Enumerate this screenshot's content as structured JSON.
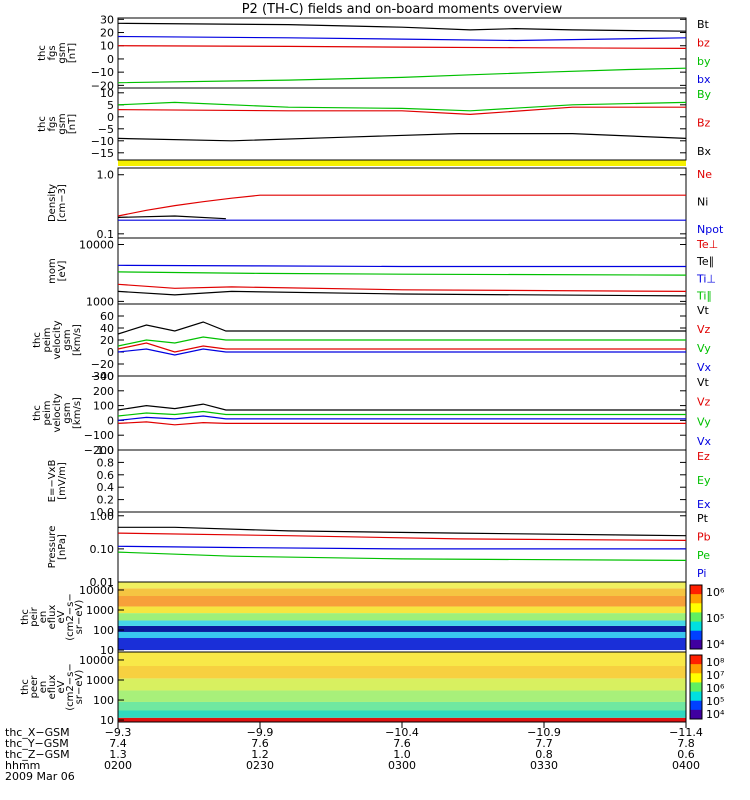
{
  "title": "P2 (TH-C) fields and on-board moments overview",
  "chart_data": {
    "type": "line",
    "panels": [
      {
        "ylabel": [
          "thc",
          "fgs",
          "gsm",
          "[nT]"
        ],
        "yticks": [
          "30",
          "20",
          "10",
          "0",
          "−10",
          "−20"
        ],
        "ylim": [
          -22,
          31
        ],
        "log": false,
        "legend": [
          {
            "name": "Bt",
            "color": "#000000"
          },
          {
            "name": "bz",
            "color": "#e00000"
          },
          {
            "name": "by",
            "color": "#00c000"
          },
          {
            "name": "bx",
            "color": "#0000e0"
          }
        ],
        "series": [
          {
            "name": "Bt",
            "color": "#000000",
            "x": [
              0,
              0.3,
              0.5,
              0.62,
              0.7,
              0.8,
              1.0
            ],
            "y": [
              27,
              26,
              24,
              22,
              23,
              22,
              21
            ]
          },
          {
            "name": "bz",
            "color": "#e00000",
            "x": [
              0,
              0.3,
              0.5,
              0.7,
              1.0
            ],
            "y": [
              10,
              9.5,
              9,
              8.5,
              8
            ]
          },
          {
            "name": "by",
            "color": "#00c000",
            "x": [
              0,
              0.3,
              0.5,
              0.62,
              0.75,
              0.9,
              1.0
            ],
            "y": [
              -18,
              -16,
              -14,
              -12,
              -10,
              -8,
              -7
            ]
          },
          {
            "name": "bx",
            "color": "#0000e0",
            "x": [
              0,
              0.3,
              0.5,
              0.7,
              1.0
            ],
            "y": [
              17,
              16,
              15,
              14,
              16
            ]
          }
        ]
      },
      {
        "ylabel": [
          "thc",
          "fgs",
          "gsm",
          "[nT]"
        ],
        "yticks": [
          "10",
          "5",
          "0",
          "−5",
          "−10",
          "−15"
        ],
        "ylim": [
          -18,
          12
        ],
        "log": false,
        "legend": [
          {
            "name": "By",
            "color": "#00c000"
          },
          {
            "name": "Bz",
            "color": "#e00000"
          },
          {
            "name": "Bx",
            "color": "#000000"
          }
        ],
        "series": [
          {
            "name": "By",
            "color": "#00c000",
            "x": [
              0,
              0.1,
              0.3,
              0.5,
              0.62,
              0.8,
              1.0
            ],
            "y": [
              5,
              6,
              4,
              3.5,
              2.5,
              5,
              6
            ]
          },
          {
            "name": "Bz",
            "color": "#e00000",
            "x": [
              0,
              0.3,
              0.5,
              0.62,
              0.8,
              1.0
            ],
            "y": [
              3,
              2.5,
              2.5,
              1,
              4,
              4
            ]
          },
          {
            "name": "Bx",
            "color": "#000000",
            "x": [
              0,
              0.2,
              0.4,
              0.6,
              0.8,
              1.0
            ],
            "y": [
              -9,
              -10,
              -8.5,
              -7,
              -7,
              -9
            ]
          }
        ]
      },
      {
        "ylabel": [
          "Density",
          "[cm−3]"
        ],
        "yticks": [
          "1.0",
          "0.1"
        ],
        "ylim": [
          0.085,
          1.3
        ],
        "log": true,
        "legend": [
          {
            "name": "Ne",
            "color": "#e00000"
          },
          {
            "name": "Ni",
            "color": "#000000"
          },
          {
            "name": "Npot",
            "color": "#0000e0"
          }
        ],
        "series": [
          {
            "name": "Ne",
            "color": "#e00000",
            "x": [
              0,
              0.05,
              0.1,
              0.15,
              0.2,
              0.25,
              1.0
            ],
            "y": [
              0.2,
              0.25,
              0.3,
              0.35,
              0.4,
              0.45,
              0.45
            ]
          },
          {
            "name": "Ni",
            "color": "#000000",
            "x": [
              0,
              0.1,
              0.19
            ],
            "y": [
              0.19,
              0.2,
              0.18
            ]
          },
          {
            "name": "Npot",
            "color": "#0000e0",
            "x": [
              0,
              0.5,
              1.0
            ],
            "y": [
              0.17,
              0.17,
              0.17
            ]
          }
        ]
      },
      {
        "ylabel": [
          "mom",
          "[eV]"
        ],
        "yticks": [
          "10000",
          "1000"
        ],
        "ylim": [
          900,
          13000
        ],
        "log": true,
        "legend": [
          {
            "name": "Te⊥",
            "color": "#e00000"
          },
          {
            "name": "Te∥",
            "color": "#000000"
          },
          {
            "name": "Ti⊥",
            "color": "#0000e0"
          },
          {
            "name": "Ti∥",
            "color": "#00c000"
          }
        ],
        "series": [
          {
            "name": "Te⊥",
            "color": "#e00000",
            "x": [
              0,
              0.1,
              0.2,
              0.5,
              1.0
            ],
            "y": [
              2000,
              1700,
              1800,
              1600,
              1500
            ]
          },
          {
            "name": "Te∥",
            "color": "#000000",
            "x": [
              0,
              0.1,
              0.2,
              0.5,
              1.0
            ],
            "y": [
              1500,
              1300,
              1500,
              1350,
              1250
            ]
          },
          {
            "name": "Ti⊥",
            "color": "#0000e0",
            "x": [
              0,
              0.25,
              0.5,
              1.0
            ],
            "y": [
              4300,
              4200,
              4100,
              4100
            ]
          },
          {
            "name": "Ti∥",
            "color": "#00c000",
            "x": [
              0,
              0.25,
              0.5,
              1.0
            ],
            "y": [
              3300,
              3100,
              3000,
              2900
            ]
          }
        ]
      },
      {
        "ylabel": [
          "thc",
          "peim",
          "velocity",
          "gsm",
          "[km/s]"
        ],
        "yticks": [
          "60",
          "40",
          "20",
          "0",
          "−20",
          "−40"
        ],
        "ylim": [
          -40,
          80
        ],
        "log": false,
        "legend": [
          {
            "name": "Vt",
            "color": "#000000"
          },
          {
            "name": "Vz",
            "color": "#e00000"
          },
          {
            "name": "Vy",
            "color": "#00c000"
          },
          {
            "name": "Vx",
            "color": "#0000e0"
          }
        ],
        "series": [
          {
            "name": "Vt",
            "color": "#000000",
            "x": [
              0,
              0.05,
              0.1,
              0.15,
              0.19,
              1.0
            ],
            "y": [
              30,
              45,
              35,
              50,
              35,
              35
            ]
          },
          {
            "name": "Vz",
            "color": "#e00000",
            "x": [
              0,
              0.05,
              0.1,
              0.15,
              0.19,
              1.0
            ],
            "y": [
              5,
              15,
              0,
              10,
              5,
              5
            ]
          },
          {
            "name": "Vy",
            "color": "#00c000",
            "x": [
              0,
              0.05,
              0.1,
              0.15,
              0.19,
              1.0
            ],
            "y": [
              10,
              20,
              15,
              25,
              20,
              20
            ]
          },
          {
            "name": "Vx",
            "color": "#0000e0",
            "x": [
              0,
              0.05,
              0.1,
              0.15,
              0.19,
              1.0
            ],
            "y": [
              0,
              5,
              -5,
              5,
              0,
              0
            ]
          }
        ]
      },
      {
        "ylabel": [
          "thc",
          "peim",
          "velocity",
          "gsm",
          "[km/s]"
        ],
        "yticks": [
          "300",
          "200",
          "100",
          "0",
          "−100",
          "−200"
        ],
        "ylim": [
          -200,
          300
        ],
        "log": false,
        "legend": [
          {
            "name": "Vt",
            "color": "#000000"
          },
          {
            "name": "Vz",
            "color": "#e00000"
          },
          {
            "name": "Vy",
            "color": "#00c000"
          },
          {
            "name": "Vx",
            "color": "#0000e0"
          }
        ],
        "series": [
          {
            "name": "Vt",
            "color": "#000000",
            "x": [
              0,
              0.05,
              0.1,
              0.15,
              0.19,
              1.0
            ],
            "y": [
              70,
              100,
              80,
              110,
              70,
              70
            ]
          },
          {
            "name": "Vz",
            "color": "#e00000",
            "x": [
              0,
              0.05,
              0.1,
              0.15,
              0.19,
              1.0
            ],
            "y": [
              -20,
              -10,
              -30,
              -15,
              -20,
              -20
            ]
          },
          {
            "name": "Vy",
            "color": "#00c000",
            "x": [
              0,
              0.05,
              0.1,
              0.15,
              0.19,
              1.0
            ],
            "y": [
              30,
              50,
              40,
              60,
              40,
              40
            ]
          },
          {
            "name": "Vx",
            "color": "#0000e0",
            "x": [
              0,
              0.05,
              0.1,
              0.15,
              0.19,
              1.0
            ],
            "y": [
              0,
              20,
              10,
              30,
              10,
              10
            ]
          }
        ]
      },
      {
        "ylabel": [
          "E=−VxB",
          "[mV/m]"
        ],
        "yticks": [
          "1.0",
          "0.8",
          "0.6",
          "0.4",
          "0.2",
          "0.0"
        ],
        "ylim": [
          0,
          1
        ],
        "log": false,
        "legend": [
          {
            "name": "Ez",
            "color": "#e00000"
          },
          {
            "name": "Ey",
            "color": "#00c000"
          },
          {
            "name": "Ex",
            "color": "#0000e0"
          }
        ],
        "series": []
      },
      {
        "ylabel": [
          "Pressure",
          "[nPa]"
        ],
        "yticks": [
          "1.00",
          "0.10",
          "0.01"
        ],
        "ylim": [
          0.01,
          1.3
        ],
        "log": true,
        "legend": [
          {
            "name": "Pt",
            "color": "#000000"
          },
          {
            "name": "Pb",
            "color": "#e00000"
          },
          {
            "name": "Pe",
            "color": "#00c000"
          },
          {
            "name": "Pi",
            "color": "#0000e0"
          }
        ],
        "series": [
          {
            "name": "Pt",
            "color": "#000000",
            "x": [
              0,
              0.1,
              0.3,
              0.6,
              1.0
            ],
            "y": [
              0.45,
              0.45,
              0.35,
              0.3,
              0.25
            ]
          },
          {
            "name": "Pb",
            "color": "#e00000",
            "x": [
              0,
              0.3,
              0.6,
              1.0
            ],
            "y": [
              0.3,
              0.25,
              0.2,
              0.18
            ]
          },
          {
            "name": "Pe",
            "color": "#00c000",
            "x": [
              0,
              0.2,
              0.5,
              1.0
            ],
            "y": [
              0.08,
              0.06,
              0.05,
              0.045
            ]
          },
          {
            "name": "Pi",
            "color": "#0000e0",
            "x": [
              0,
              0.2,
              0.5,
              1.0
            ],
            "y": [
              0.12,
              0.11,
              0.1,
              0.1
            ]
          }
        ]
      }
    ],
    "spectrograms": [
      {
        "ylabel": [
          "thc",
          "peir",
          "en",
          "eflux",
          "eV",
          "(cm2−s−",
          "sr−eV)"
        ],
        "yticks": [
          "10000",
          "1000",
          "100",
          "10"
        ],
        "ylim": [
          8,
          25000
        ],
        "log": true,
        "colorbar_labels": [
          "10⁶",
          "10⁵",
          "10⁴"
        ],
        "bands": [
          {
            "from": 10,
            "to": 40,
            "color": "#1a2fd8"
          },
          {
            "from": 40,
            "to": 80,
            "color": "#39c6f0"
          },
          {
            "from": 80,
            "to": 160,
            "color": "#0a1c9e"
          },
          {
            "from": 160,
            "to": 300,
            "color": "#47d7e8"
          },
          {
            "from": 300,
            "to": 700,
            "color": "#9df07a"
          },
          {
            "from": 700,
            "to": 1500,
            "color": "#f5e640"
          },
          {
            "from": 1500,
            "to": 5000,
            "color": "#f7a03a"
          },
          {
            "from": 5000,
            "to": 12000,
            "color": "#f5c542"
          },
          {
            "from": 12000,
            "to": 25000,
            "color": "#f0f060"
          }
        ]
      },
      {
        "ylabel": [
          "thc",
          "peer",
          "en",
          "eflux",
          "eV",
          "(cm2−s−",
          "sr−eV)"
        ],
        "yticks": [
          "10000",
          "1000",
          "100",
          "10"
        ],
        "ylim": [
          8,
          25000
        ],
        "log": true,
        "colorbar_labels": [
          "10⁸",
          "10⁷",
          "10⁶",
          "10⁵",
          "10⁴"
        ],
        "bands": [
          {
            "from": 8,
            "to": 13,
            "color": "#e01010"
          },
          {
            "from": 13,
            "to": 30,
            "color": "#30d8c0"
          },
          {
            "from": 30,
            "to": 80,
            "color": "#70e8a0"
          },
          {
            "from": 80,
            "to": 300,
            "color": "#a8f07a"
          },
          {
            "from": 300,
            "to": 1200,
            "color": "#d8f060"
          },
          {
            "from": 1200,
            "to": 5000,
            "color": "#f7d040"
          },
          {
            "from": 5000,
            "to": 25000,
            "color": "#f8e848"
          }
        ]
      }
    ],
    "x_axis_rows": [
      {
        "label": "thc_X−GSM",
        "values": [
          "−9.3",
          "−9.9",
          "−10.4",
          "−10.9",
          "−11.4"
        ]
      },
      {
        "label": "thc_Y−GSM",
        "values": [
          "7.4",
          "7.6",
          "7.6",
          "7.7",
          "7.8"
        ]
      },
      {
        "label": "thc_Z−GSM",
        "values": [
          "1.3",
          "1.2",
          "1.0",
          "0.8",
          "0.6"
        ]
      },
      {
        "label": "hhmm",
        "values": [
          "0200",
          "0230",
          "0300",
          "0330",
          "0400"
        ]
      }
    ],
    "date": "2009 Mar 06"
  }
}
